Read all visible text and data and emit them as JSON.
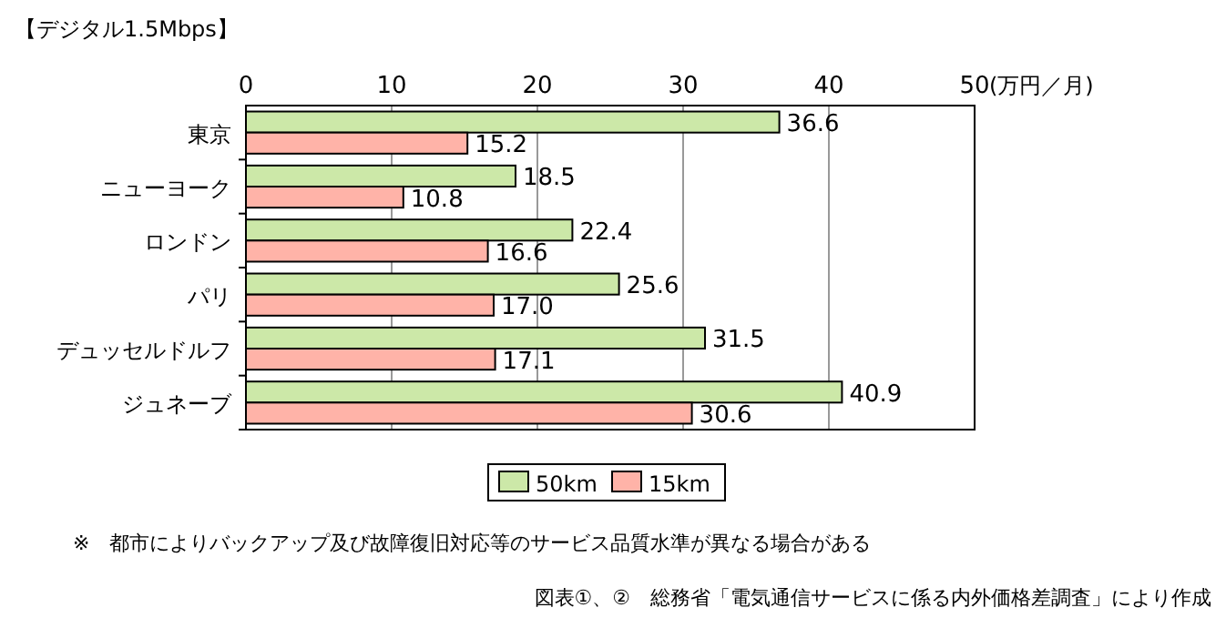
{
  "chart_data": {
    "type": "bar",
    "orientation": "horizontal",
    "title": "【デジタル1.5Mbps】",
    "xlabel": "(万円／月)",
    "categories": [
      "東京",
      "ニューヨーク",
      "ロンドン",
      "パリ",
      "デュッセルドルフ",
      "ジュネーブ"
    ],
    "series": [
      {
        "name": "50km",
        "color": "#cce8a8",
        "values": [
          36.6,
          18.5,
          22.4,
          25.6,
          31.5,
          40.9
        ]
      },
      {
        "name": "15km",
        "color": "#ffb3a8",
        "values": [
          15.2,
          10.8,
          16.6,
          17.0,
          17.1,
          30.6
        ]
      }
    ],
    "value_labels": [
      [
        "36.6",
        "18.5",
        "22.4",
        "25.6",
        "31.5",
        "40.9"
      ],
      [
        "15.2",
        "10.8",
        "16.6",
        "17.0",
        "17.1",
        "30.6"
      ]
    ],
    "xlim": [
      0,
      50
    ],
    "xticks": [
      0,
      10,
      20,
      30,
      40,
      50
    ],
    "grid": "x",
    "legend": "bottom",
    "annotations": [
      "※　都市によりバックアップ及び故障復旧対応等のサービス品質水準が異なる場合がある",
      "図表①、②　総務省「電気通信サービスに係る内外価格差調査」により作成"
    ]
  }
}
